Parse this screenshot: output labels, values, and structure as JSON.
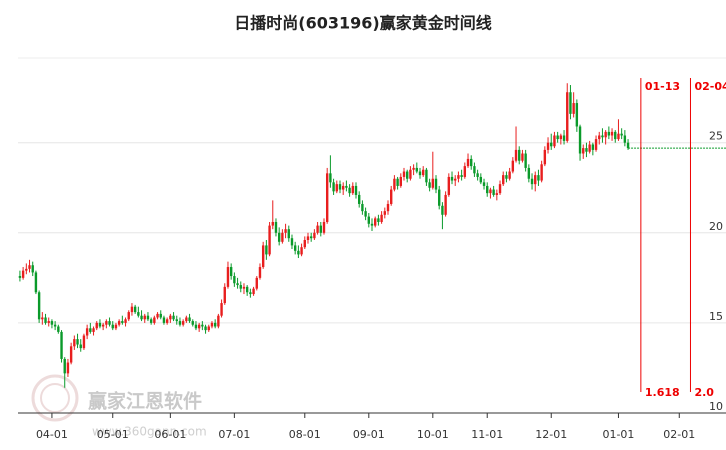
{
  "chart_data": {
    "type": "candlestick",
    "title": "日播时尚(603196)赢家黄金时间线",
    "up_color": "#e81e1e",
    "down_color": "#0a9a2a",
    "ylim": [
      10,
      29.7
    ],
    "yticks": [
      10,
      15,
      20,
      25
    ],
    "grid": true,
    "xlim": [
      -0.6,
      220.6
    ],
    "xticks": [
      {
        "value": 10,
        "label": "04-01"
      },
      {
        "value": 29,
        "label": "05-01"
      },
      {
        "value": 47,
        "label": "06-01"
      },
      {
        "value": 67,
        "label": "07-01"
      },
      {
        "value": 89,
        "label": "08-01"
      },
      {
        "value": 109,
        "label": "09-01"
      },
      {
        "value": 129,
        "label": "10-01"
      },
      {
        "value": 146,
        "label": "11-01"
      },
      {
        "value": 166,
        "label": "12-01"
      },
      {
        "value": 187,
        "label": "01-01"
      },
      {
        "value": 206,
        "label": "02-01"
      }
    ],
    "annotations": [
      {
        "x": 194,
        "label": "01-13",
        "ratio": "1.618"
      },
      {
        "x": 209.5,
        "label": "02-04",
        "ratio": "2.0"
      }
    ],
    "watermark": {
      "name": "赢家江恩软件",
      "url": "www.360gann.com"
    },
    "candles": [
      [
        17.6,
        17.9,
        17.3,
        17.5
      ],
      [
        17.5,
        18.1,
        17.4,
        17.9
      ],
      [
        17.9,
        18.3,
        17.7,
        18.0
      ],
      [
        18.0,
        18.5,
        17.8,
        18.2
      ],
      [
        18.2,
        18.4,
        17.6,
        17.8
      ],
      [
        17.8,
        17.9,
        16.6,
        16.7
      ],
      [
        16.7,
        16.8,
        15.0,
        15.2
      ],
      [
        15.2,
        15.6,
        14.9,
        15.3
      ],
      [
        15.3,
        15.5,
        14.9,
        15.0
      ],
      [
        15.0,
        15.3,
        14.8,
        15.1
      ],
      [
        15.1,
        15.2,
        14.7,
        14.9
      ],
      [
        14.9,
        15.1,
        14.6,
        14.8
      ],
      [
        14.8,
        14.9,
        14.4,
        14.5
      ],
      [
        14.5,
        14.6,
        12.8,
        13.0
      ],
      [
        13.0,
        13.1,
        11.4,
        12.2
      ],
      [
        12.2,
        13.0,
        12.0,
        12.8
      ],
      [
        12.8,
        13.9,
        12.7,
        13.7
      ],
      [
        13.7,
        14.3,
        13.5,
        14.1
      ],
      [
        14.1,
        14.4,
        13.6,
        13.8
      ],
      [
        13.8,
        14.1,
        13.4,
        13.6
      ],
      [
        13.6,
        14.4,
        13.5,
        14.3
      ],
      [
        14.3,
        14.9,
        14.1,
        14.7
      ],
      [
        14.7,
        15.0,
        14.4,
        14.5
      ],
      [
        14.5,
        14.8,
        14.3,
        14.7
      ],
      [
        14.7,
        15.1,
        14.6,
        15.0
      ],
      [
        15.0,
        15.2,
        14.7,
        14.8
      ],
      [
        14.8,
        15.0,
        14.6,
        14.9
      ],
      [
        14.9,
        15.2,
        14.7,
        15.1
      ],
      [
        15.1,
        15.3,
        14.8,
        14.9
      ],
      [
        14.9,
        15.1,
        14.6,
        14.7
      ],
      [
        14.7,
        15.0,
        14.6,
        14.9
      ],
      [
        14.9,
        15.2,
        14.8,
        15.1
      ],
      [
        15.1,
        15.4,
        14.9,
        15.0
      ],
      [
        15.0,
        15.3,
        14.8,
        15.2
      ],
      [
        15.2,
        15.7,
        15.1,
        15.6
      ],
      [
        15.6,
        16.1,
        15.4,
        15.9
      ],
      [
        15.9,
        16.0,
        15.5,
        15.6
      ],
      [
        15.6,
        15.9,
        15.3,
        15.4
      ],
      [
        15.4,
        15.7,
        15.1,
        15.2
      ],
      [
        15.2,
        15.5,
        15.0,
        15.4
      ],
      [
        15.4,
        15.6,
        15.1,
        15.2
      ],
      [
        15.2,
        15.3,
        14.9,
        15.0
      ],
      [
        15.0,
        15.4,
        14.9,
        15.3
      ],
      [
        15.3,
        15.6,
        15.2,
        15.5
      ],
      [
        15.5,
        15.7,
        15.2,
        15.3
      ],
      [
        15.3,
        15.4,
        14.9,
        15.0
      ],
      [
        15.0,
        15.3,
        14.9,
        15.2
      ],
      [
        15.2,
        15.5,
        15.0,
        15.4
      ],
      [
        15.4,
        15.6,
        15.1,
        15.2
      ],
      [
        15.2,
        15.4,
        14.9,
        15.1
      ],
      [
        15.1,
        15.3,
        14.8,
        14.9
      ],
      [
        14.9,
        15.2,
        14.8,
        15.1
      ],
      [
        15.1,
        15.4,
        15.0,
        15.3
      ],
      [
        15.3,
        15.5,
        15.0,
        15.1
      ],
      [
        15.1,
        15.2,
        14.8,
        14.9
      ],
      [
        14.9,
        15.1,
        14.6,
        14.7
      ],
      [
        14.7,
        15.0,
        14.5,
        14.9
      ],
      [
        14.9,
        15.1,
        14.6,
        14.8
      ],
      [
        14.8,
        14.9,
        14.4,
        14.6
      ],
      [
        14.6,
        14.9,
        14.5,
        14.8
      ],
      [
        14.8,
        15.1,
        14.7,
        15.0
      ],
      [
        15.0,
        15.2,
        14.7,
        14.8
      ],
      [
        14.8,
        15.5,
        14.7,
        15.4
      ],
      [
        15.4,
        16.3,
        15.3,
        16.1
      ],
      [
        16.1,
        17.2,
        16.0,
        17.0
      ],
      [
        17.0,
        18.4,
        16.9,
        18.1
      ],
      [
        18.1,
        18.3,
        17.4,
        17.6
      ],
      [
        17.6,
        17.8,
        17.0,
        17.2
      ],
      [
        17.2,
        17.5,
        16.9,
        17.1
      ],
      [
        17.1,
        17.3,
        16.7,
        16.9
      ],
      [
        16.9,
        17.2,
        16.6,
        17.0
      ],
      [
        17.0,
        17.1,
        16.5,
        16.7
      ],
      [
        16.7,
        16.9,
        16.4,
        16.6
      ],
      [
        16.6,
        17.0,
        16.5,
        16.9
      ],
      [
        16.9,
        17.6,
        16.8,
        17.5
      ],
      [
        17.5,
        18.3,
        17.4,
        18.1
      ],
      [
        18.1,
        19.5,
        18.0,
        19.3
      ],
      [
        19.3,
        19.6,
        18.5,
        18.8
      ],
      [
        18.8,
        20.6,
        18.7,
        20.4
      ],
      [
        20.4,
        21.8,
        20.2,
        20.6
      ],
      [
        20.6,
        20.8,
        19.8,
        20.0
      ],
      [
        20.0,
        20.3,
        19.3,
        19.5
      ],
      [
        19.5,
        20.2,
        19.4,
        20.0
      ],
      [
        20.0,
        20.5,
        19.7,
        20.2
      ],
      [
        20.2,
        20.4,
        19.5,
        19.7
      ],
      [
        19.7,
        19.9,
        19.1,
        19.3
      ],
      [
        19.3,
        19.5,
        18.8,
        19.0
      ],
      [
        19.0,
        19.3,
        18.6,
        18.8
      ],
      [
        18.8,
        19.4,
        18.7,
        19.2
      ],
      [
        19.2,
        19.8,
        19.1,
        19.6
      ],
      [
        19.6,
        20.0,
        19.4,
        19.8
      ],
      [
        19.8,
        20.0,
        19.5,
        19.7
      ],
      [
        19.7,
        20.2,
        19.6,
        20.0
      ],
      [
        20.0,
        20.6,
        19.9,
        20.4
      ],
      [
        20.4,
        20.6,
        19.8,
        20.0
      ],
      [
        20.0,
        20.8,
        19.9,
        20.6
      ],
      [
        20.6,
        23.6,
        20.5,
        23.3
      ],
      [
        23.3,
        24.3,
        22.5,
        22.8
      ],
      [
        22.8,
        23.0,
        22.1,
        22.3
      ],
      [
        22.3,
        22.9,
        22.2,
        22.7
      ],
      [
        22.7,
        22.9,
        22.2,
        22.4
      ],
      [
        22.4,
        22.8,
        22.1,
        22.6
      ],
      [
        22.6,
        22.9,
        22.3,
        22.5
      ],
      [
        22.5,
        22.7,
        22.0,
        22.2
      ],
      [
        22.2,
        22.8,
        22.1,
        22.6
      ],
      [
        22.6,
        22.8,
        21.9,
        22.1
      ],
      [
        22.1,
        22.3,
        21.4,
        21.6
      ],
      [
        21.6,
        21.8,
        21.0,
        21.2
      ],
      [
        21.2,
        21.4,
        20.7,
        20.9
      ],
      [
        20.9,
        21.1,
        20.3,
        20.5
      ],
      [
        20.5,
        20.8,
        20.1,
        20.4
      ],
      [
        20.4,
        20.9,
        20.3,
        20.8
      ],
      [
        20.8,
        21.0,
        20.4,
        20.6
      ],
      [
        20.6,
        21.2,
        20.5,
        21.0
      ],
      [
        21.0,
        21.4,
        20.8,
        21.2
      ],
      [
        21.2,
        21.8,
        21.0,
        21.6
      ],
      [
        21.6,
        22.6,
        21.5,
        22.4
      ],
      [
        22.4,
        23.2,
        22.3,
        23.0
      ],
      [
        23.0,
        23.1,
        22.4,
        22.6
      ],
      [
        22.6,
        23.3,
        22.5,
        23.1
      ],
      [
        23.1,
        23.6,
        22.9,
        23.4
      ],
      [
        23.4,
        23.5,
        22.8,
        23.0
      ],
      [
        23.0,
        23.7,
        22.9,
        23.5
      ],
      [
        23.5,
        23.8,
        23.2,
        23.6
      ],
      [
        23.6,
        23.9,
        23.3,
        23.4
      ],
      [
        23.4,
        23.6,
        23.0,
        23.2
      ],
      [
        23.2,
        23.7,
        23.1,
        23.5
      ],
      [
        23.5,
        23.6,
        22.6,
        22.8
      ],
      [
        22.8,
        23.0,
        22.3,
        22.5
      ],
      [
        22.5,
        24.5,
        22.4,
        23.0
      ],
      [
        23.0,
        23.2,
        22.2,
        22.4
      ],
      [
        22.4,
        22.6,
        21.3,
        21.5
      ],
      [
        21.5,
        21.7,
        20.2,
        21.0
      ],
      [
        21.0,
        22.3,
        20.9,
        22.1
      ],
      [
        22.1,
        23.3,
        22.0,
        23.1
      ],
      [
        23.1,
        23.4,
        22.7,
        22.9
      ],
      [
        22.9,
        23.2,
        22.6,
        23.0
      ],
      [
        23.0,
        23.4,
        22.8,
        23.2
      ],
      [
        23.2,
        23.5,
        22.9,
        23.1
      ],
      [
        23.1,
        23.9,
        23.0,
        23.7
      ],
      [
        23.7,
        24.4,
        23.6,
        24.1
      ],
      [
        24.1,
        24.3,
        23.5,
        23.7
      ],
      [
        23.7,
        23.9,
        23.1,
        23.3
      ],
      [
        23.3,
        23.5,
        22.9,
        23.1
      ],
      [
        23.1,
        23.3,
        22.7,
        22.8
      ],
      [
        22.8,
        23.0,
        22.4,
        22.6
      ],
      [
        22.6,
        22.8,
        22.0,
        22.2
      ],
      [
        22.2,
        22.5,
        21.9,
        22.4
      ],
      [
        22.4,
        22.6,
        22.0,
        22.1
      ],
      [
        22.1,
        22.4,
        21.8,
        22.2
      ],
      [
        22.2,
        22.9,
        22.1,
        22.7
      ],
      [
        22.7,
        23.4,
        22.6,
        23.2
      ],
      [
        23.2,
        23.4,
        22.8,
        23.0
      ],
      [
        23.0,
        23.6,
        22.9,
        23.4
      ],
      [
        23.4,
        24.2,
        23.3,
        24.0
      ],
      [
        24.0,
        25.9,
        23.9,
        24.6
      ],
      [
        24.6,
        24.8,
        23.8,
        24.0
      ],
      [
        24.0,
        24.6,
        23.9,
        24.4
      ],
      [
        24.4,
        24.6,
        23.4,
        23.6
      ],
      [
        23.6,
        23.8,
        22.8,
        23.0
      ],
      [
        23.0,
        23.3,
        22.4,
        22.7
      ],
      [
        22.7,
        23.4,
        22.3,
        23.2
      ],
      [
        23.2,
        23.5,
        22.6,
        22.9
      ],
      [
        22.9,
        24.0,
        22.8,
        23.8
      ],
      [
        23.8,
        24.8,
        23.7,
        24.6
      ],
      [
        24.6,
        25.3,
        24.4,
        25.0
      ],
      [
        25.0,
        25.5,
        24.6,
        24.8
      ],
      [
        24.8,
        25.6,
        24.7,
        25.4
      ],
      [
        25.4,
        25.6,
        25.0,
        25.2
      ],
      [
        25.2,
        25.5,
        24.9,
        25.4
      ],
      [
        25.4,
        25.7,
        24.9,
        25.1
      ],
      [
        25.1,
        28.3,
        25.0,
        27.8
      ],
      [
        27.8,
        28.2,
        26.3,
        26.6
      ],
      [
        26.6,
        27.8,
        26.4,
        27.2
      ],
      [
        27.2,
        27.4,
        25.6,
        25.9
      ],
      [
        25.9,
        26.0,
        24.0,
        24.4
      ],
      [
        24.4,
        24.9,
        24.1,
        24.7
      ],
      [
        24.7,
        25.0,
        24.2,
        24.5
      ],
      [
        24.5,
        25.1,
        24.4,
        24.9
      ],
      [
        24.9,
        25.0,
        24.3,
        24.6
      ],
      [
        24.6,
        25.4,
        24.5,
        25.2
      ],
      [
        25.2,
        25.6,
        24.9,
        25.4
      ],
      [
        25.4,
        25.8,
        25.0,
        25.3
      ],
      [
        25.3,
        25.7,
        24.9,
        25.6
      ],
      [
        25.6,
        25.9,
        25.2,
        25.4
      ],
      [
        25.4,
        25.8,
        25.1,
        25.6
      ],
      [
        25.6,
        25.7,
        25.0,
        25.2
      ],
      [
        25.2,
        26.3,
        25.1,
        25.5
      ],
      [
        25.5,
        25.8,
        25.2,
        25.4
      ],
      [
        25.4,
        25.7,
        24.8,
        25.0
      ],
      [
        25.0,
        25.2,
        24.6,
        24.7
      ]
    ]
  }
}
